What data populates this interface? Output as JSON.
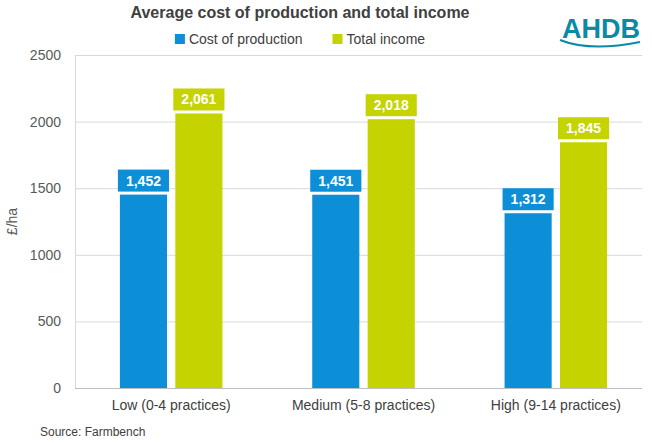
{
  "chart_data": {
    "type": "bar",
    "title": "Average cost of production and total income",
    "y_label": "£/ha",
    "source": "Source: Farmbench",
    "logo": "AHDB",
    "categories": [
      "Low (0-4 practices)",
      "Medium (5-8 practices)",
      "High (9-14 practices)"
    ],
    "series": [
      {
        "name": "Cost of production",
        "color": "#0c8fd6",
        "values": [
          1452,
          1451,
          1312
        ],
        "value_labels": [
          "1,452",
          "1,451",
          "1,312"
        ]
      },
      {
        "name": "Total income",
        "color": "#c5d400",
        "values": [
          2061,
          2018,
          1845
        ],
        "value_labels": [
          "2,061",
          "2,018",
          "1,845"
        ]
      }
    ],
    "ylim": [
      0,
      2500
    ],
    "yticks": [
      0,
      500,
      1000,
      1500,
      2000,
      2500
    ],
    "grid": true,
    "legend": "top",
    "data_labels": true
  }
}
